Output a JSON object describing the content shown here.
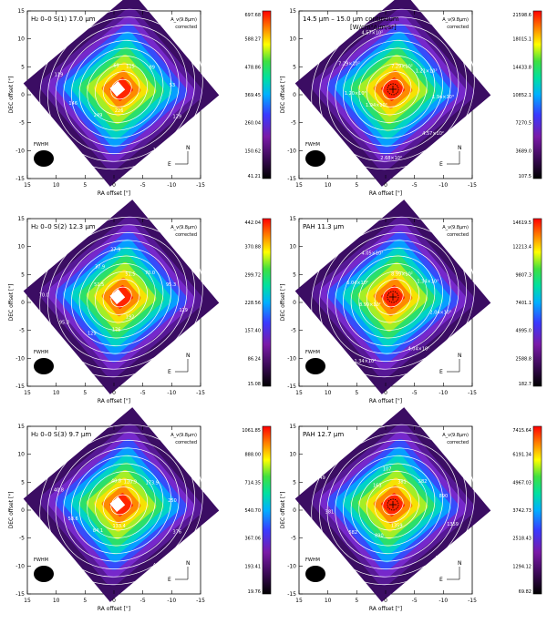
{
  "colors": {
    "background": "#ffffff",
    "frame": "#000000",
    "contour": "#ffffff",
    "colormap": [
      "#000000",
      "#3a0a55",
      "#7a1aa8",
      "#3a3aff",
      "#00b0ff",
      "#00e0a0",
      "#40e040",
      "#ffff00",
      "#ff8000",
      "#ff0000"
    ]
  },
  "axis_labels": {
    "x": "RA offset [\"]",
    "y": "DEC offset [\"]",
    "x_ticks": [
      "15",
      "10",
      "5",
      "0",
      "-5",
      "-10",
      "-15"
    ],
    "y_ticks": [
      "15",
      "10",
      "5",
      "0",
      "-5",
      "-10",
      "-15"
    ]
  },
  "common": {
    "beam_label": "FWHM",
    "north_label": "N",
    "east_label": "E",
    "colorbar_title": "A_v(9.8μm)",
    "colorbar_subtitle": "corrected"
  },
  "panels": [
    {
      "title": "H₂ 0–0 S(1) 17.0 μm",
      "subtitle": "",
      "colorbar_ticks": [
        "697.68",
        "588.27",
        "478.86",
        "369.45",
        "260.04",
        "150.62",
        "41.21"
      ],
      "contour_labels": [
        "115",
        "89",
        "53",
        "129",
        "149",
        "226",
        "249",
        "146",
        "119",
        "89",
        "69"
      ],
      "peak_marker": false
    },
    {
      "title": "14.5 μm – 15.0 μm continuum",
      "subtitle": "[W/cm²/μm/sr]",
      "colorbar_ticks": [
        "21598.6",
        "18015.1",
        "14433.8",
        "10852.1",
        "7270.5",
        "3689.0",
        "107.5"
      ],
      "contour_labels": [
        "7.29×10²",
        "1.21×10³",
        "1.94×10³",
        "4.57×10²",
        "2.68×10²",
        "1.94×10³",
        "1.20×10³",
        "7.29×10²",
        "4.57×10²"
      ],
      "peak_marker": true
    },
    {
      "title": "H₂ 0–0 S(2) 12.3 μm",
      "subtitle": "",
      "colorbar_ticks": [
        "442.04",
        "370.88",
        "299.72",
        "228.56",
        "157.40",
        "86.24",
        "15.08"
      ],
      "contour_labels": [
        "51.5",
        "70.0",
        "95.3",
        "129",
        "176",
        "192",
        "176",
        "129",
        "95.3",
        "70.0",
        "51.5",
        "37.9",
        "27.9"
      ],
      "peak_marker": false
    },
    {
      "title": "PAH 11.3 μm",
      "subtitle": "",
      "colorbar_ticks": [
        "14619.5",
        "12213.4",
        "9807.3",
        "7401.1",
        "4995.0",
        "2588.8",
        "182.7"
      ],
      "contour_labels": [
        "8.99×10²",
        "1.34×10³",
        "2.04×10³",
        "4.04×10²",
        "1.34×10³",
        "8.99×10²",
        "6.04×10²",
        "4.05×10²"
      ],
      "peak_marker": true
    },
    {
      "title": "H₂ 0–0 S(3) 9.7 μm",
      "subtitle": "",
      "colorbar_ticks": [
        "1061.85",
        "888.00",
        "714.35",
        "540.70",
        "367.06",
        "193.41",
        "19.76"
      ],
      "contour_labels": [
        "120.9",
        "173.9",
        "250",
        "376",
        "483",
        "133.4",
        "84.1",
        "58.6",
        "40.8",
        "28.4",
        "40.8"
      ],
      "peak_marker": false
    },
    {
      "title": "PAH 12.7 μm",
      "subtitle": "",
      "colorbar_ticks": [
        "7415.64",
        "6191.34",
        "4967.03",
        "3742.73",
        "2518.43",
        "1294.12",
        "69.82"
      ],
      "contour_labels": [
        "381",
        "582",
        "890",
        "1359",
        "2077",
        "1359",
        "890",
        "582",
        "381",
        "249",
        "163",
        "107"
      ],
      "peak_marker": true
    }
  ]
}
